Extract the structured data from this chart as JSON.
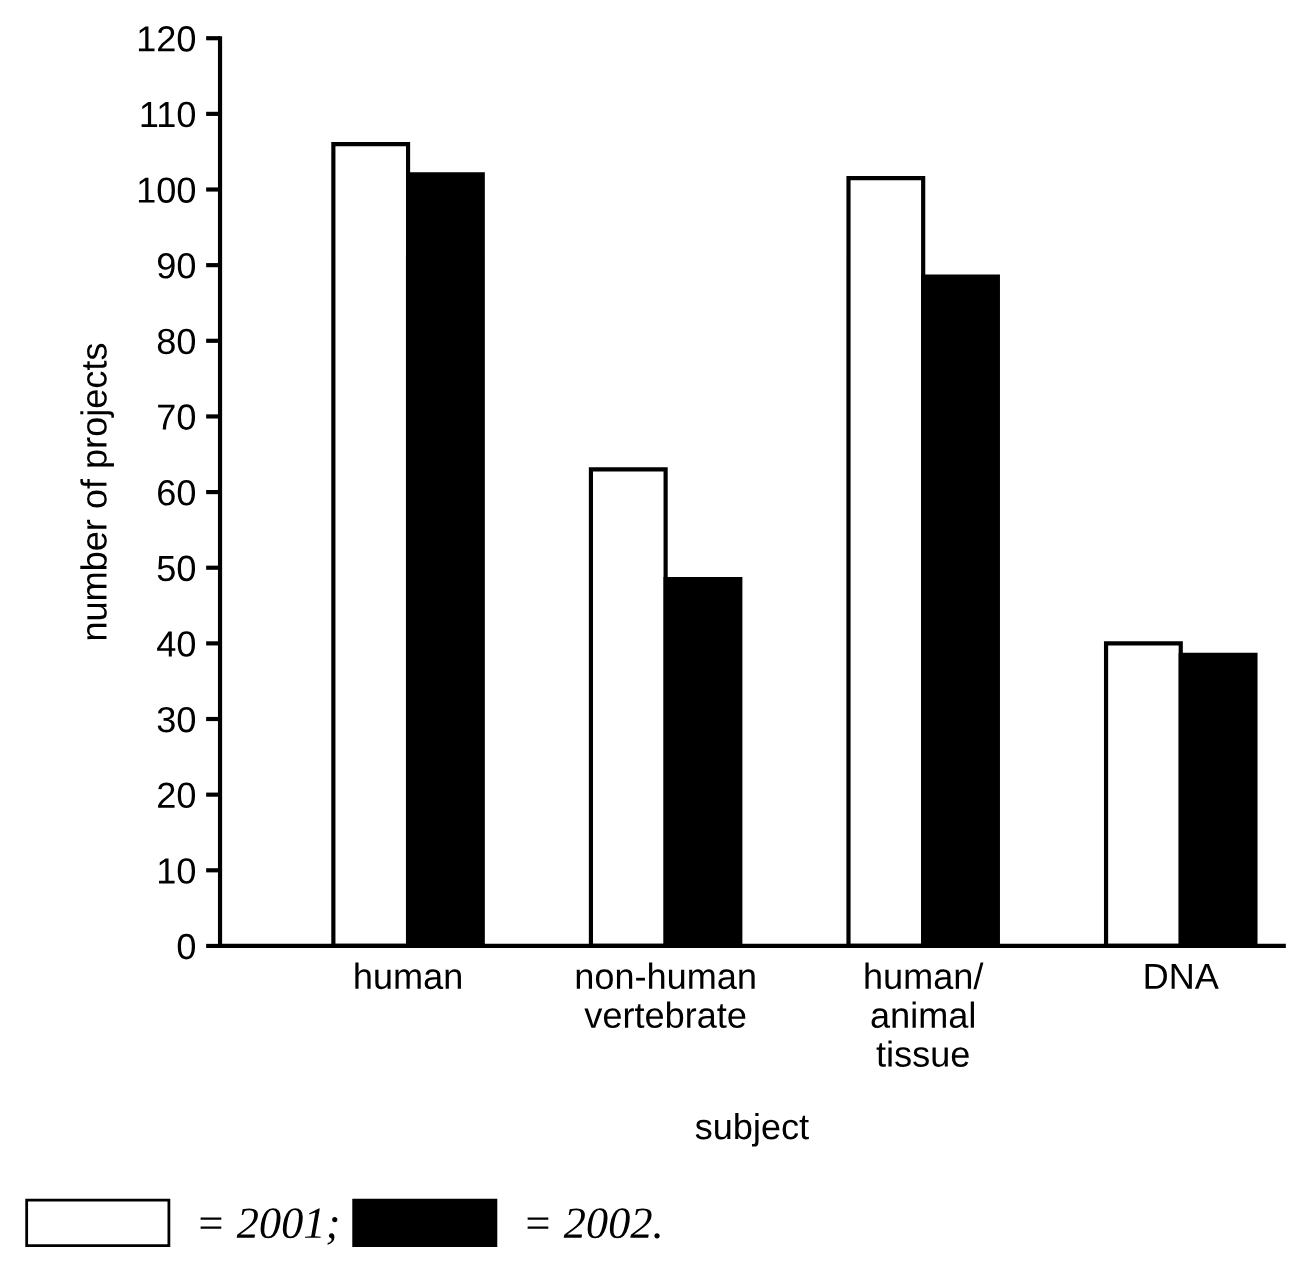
{
  "chart_data": {
    "type": "bar",
    "xlabel": "subject",
    "ylabel": "number of projects",
    "categories": [
      "human",
      "non-human\nvertebrate",
      "human/\nanimal\ntissue",
      "DNA"
    ],
    "series": [
      {
        "name": "= 2001;",
        "color": "#ffffff",
        "values": [
          106,
          63,
          101.5,
          40
        ]
      },
      {
        "name": "= 2002.",
        "color": "#000000",
        "values": [
          102,
          48.5,
          88.5,
          38.5
        ]
      }
    ],
    "ylim": [
      0,
      120
    ],
    "yticks": [
      0,
      10,
      20,
      30,
      40,
      50,
      60,
      70,
      80,
      90,
      100,
      110,
      120
    ],
    "grid": false,
    "legend": "bottom left"
  }
}
